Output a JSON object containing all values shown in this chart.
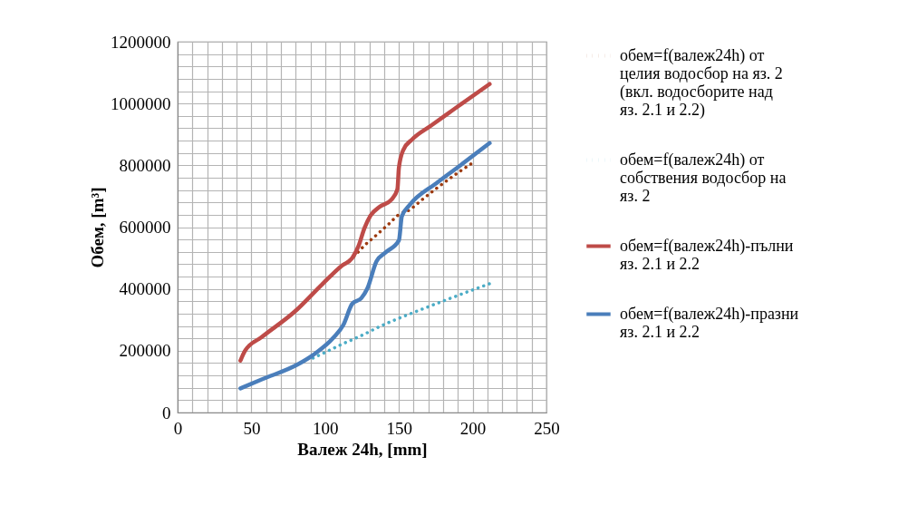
{
  "chart_data": {
    "type": "line",
    "xlabel": "Валеж 24h, [mm]",
    "ylabel": "Обем, [m³]",
    "xlim": [
      0,
      250
    ],
    "ylim": [
      0,
      1200000
    ],
    "xticks": [
      0,
      {
        "value": 10,
        "label": null
      },
      {
        "value": 20,
        "label": null
      },
      {
        "value": 30,
        "label": null
      },
      {
        "value": 40,
        "label": null
      },
      50,
      {
        "value": 60,
        "label": null
      },
      {
        "value": 70,
        "label": null
      },
      {
        "value": 80,
        "label": null
      },
      {
        "value": 90,
        "label": null
      },
      100,
      {
        "value": 110,
        "label": null
      },
      {
        "value": 120,
        "label": null
      },
      {
        "value": 130,
        "label": null
      },
      {
        "value": 140,
        "label": null
      },
      150,
      {
        "value": 160,
        "label": null
      },
      {
        "value": 170,
        "label": null
      },
      {
        "value": 180,
        "label": null
      },
      {
        "value": 190,
        "label": null
      },
      200,
      {
        "value": 210,
        "label": null
      },
      {
        "value": 220,
        "label": null
      },
      {
        "value": 230,
        "label": null
      },
      {
        "value": 240,
        "label": null
      },
      250
    ],
    "yticks": [
      0,
      {
        "value": 40000,
        "label": null
      },
      {
        "value": 80000,
        "label": null
      },
      {
        "value": 120000,
        "label": null
      },
      {
        "value": 160000,
        "label": null
      },
      200000,
      {
        "value": 240000,
        "label": null
      },
      {
        "value": 280000,
        "label": null
      },
      {
        "value": 320000,
        "label": null
      },
      {
        "value": 360000,
        "label": null
      },
      400000,
      {
        "value": 440000,
        "label": null
      },
      {
        "value": 480000,
        "label": null
      },
      {
        "value": 520000,
        "label": null
      },
      {
        "value": 560000,
        "label": null
      },
      600000,
      {
        "value": 640000,
        "label": null
      },
      {
        "value": 680000,
        "label": null
      },
      {
        "value": 720000,
        "label": null
      },
      {
        "value": 760000,
        "label": null
      },
      800000,
      {
        "value": 840000,
        "label": null
      },
      {
        "value": 880000,
        "label": null
      },
      {
        "value": 920000,
        "label": null
      },
      {
        "value": 960000,
        "label": null
      },
      1000000,
      {
        "value": 1040000,
        "label": null
      },
      {
        "value": 1080000,
        "label": null
      },
      {
        "value": 1120000,
        "label": null
      },
      {
        "value": 1160000,
        "label": null
      },
      1200000
    ],
    "grid": true,
    "legend": "right",
    "marker": "none",
    "series": [
      {
        "name": "обем=f(валеж24h) от целия водосбор на яз. 2 (вкл. водосборите над яз. 2.1 и 2.2)",
        "color": "#9c3a10",
        "line_style": "dotted",
        "x": [
          42.6,
          45.7,
          57,
          79.5,
          98,
          111,
          118.4,
          122.5,
          127.6,
          133,
          138.4,
          144,
          149,
          157,
          165.5,
          175.7,
          190,
          200
        ],
        "values": [
          168000,
          200000,
          244000,
          327000,
          415000,
          474000,
          500000,
          520000,
          545000,
          567000,
          590000,
          614000,
          637000,
          655000,
          688000,
          726000,
          776000,
          808000
        ]
      },
      {
        "name": "обем=f(валеж24h) от собствения водосбор на яз. 2",
        "color": "#4bacc6",
        "line_style": "dotted",
        "x": [
          91.8,
          98,
          111,
          124.6,
          136.9,
          144,
          164.4,
          184,
          211.5
        ],
        "values": [
          176000,
          190000,
          220000,
          249000,
          278000,
          293000,
          332000,
          368000,
          417000
        ]
      },
      {
        "name": "обем=f(валеж24h)-пълни яз. 2.1 и 2.2",
        "color": "#be4b48",
        "line_style": "solid",
        "x": [
          42.6,
          45.7,
          57,
          79.5,
          98,
          111,
          118.4,
          122.5,
          126.6,
          130.7,
          136.8,
          145,
          149,
          150,
          153,
          159,
          171.6,
          186,
          211.5
        ],
        "values": [
          168000,
          200000,
          244000,
          327000,
          415000,
          474000,
          500000,
          537000,
          596000,
          637000,
          665000,
          689000,
          723000,
          792000,
          850000,
          884000,
          928000,
          977000,
          1063000
        ]
      },
      {
        "name": "обем=f(валеж24h)-празни яз. 2.1 и 2.2",
        "color": "#4a7ebb",
        "line_style": "solid",
        "x": [
          42.6,
          57,
          81.6,
          91.8,
          106,
          112.3,
          118.4,
          124.5,
          128.6,
          134.8,
          141,
          150,
          152,
          157,
          175.7,
          192,
          211.5
        ],
        "values": [
          78000,
          107000,
          156000,
          186000,
          244000,
          283000,
          352000,
          370000,
          401000,
          489000,
          518000,
          557000,
          635000,
          670000,
          743000,
          801000,
          872000
        ]
      }
    ]
  }
}
